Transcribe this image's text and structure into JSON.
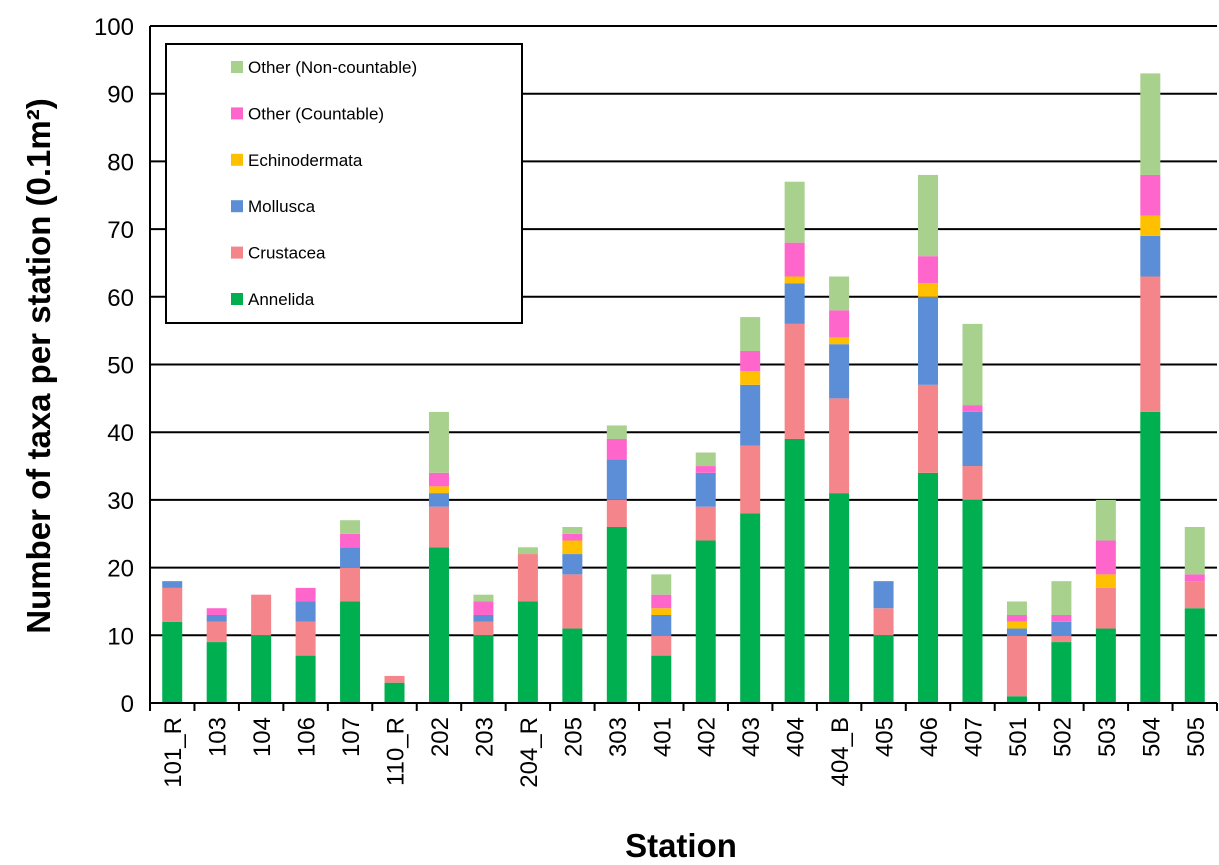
{
  "chart_data": {
    "type": "bar",
    "stacked": true,
    "title": "",
    "xlabel": "Station",
    "ylabel": "Number of taxa per station (0.1m²)",
    "ylim": [
      0,
      100
    ],
    "yticks": [
      0,
      10,
      20,
      30,
      40,
      50,
      60,
      70,
      80,
      90,
      100
    ],
    "grid": "horizontal",
    "legend_position": "top-left",
    "categories": [
      "101_R",
      "103",
      "104",
      "106",
      "107",
      "110_R",
      "202",
      "203",
      "204_R",
      "205",
      "303",
      "401",
      "402",
      "403",
      "404",
      "404_B",
      "405",
      "406",
      "407",
      "501",
      "502",
      "503",
      "504",
      "505"
    ],
    "series": [
      {
        "name": "Annelida",
        "color": "#00b050",
        "values": [
          12,
          9,
          10,
          7,
          15,
          3,
          23,
          10,
          15,
          11,
          26,
          7,
          24,
          28,
          39,
          31,
          10,
          34,
          30,
          1,
          9,
          11,
          43,
          14
        ]
      },
      {
        "name": "Crustacea",
        "color": "#f4858a",
        "values": [
          5,
          3,
          6,
          5,
          5,
          1,
          6,
          2,
          7,
          8,
          4,
          3,
          5,
          10,
          17,
          14,
          4,
          13,
          5,
          9,
          1,
          6,
          20,
          4
        ]
      },
      {
        "name": "Mollusca",
        "color": "#5b8ed6",
        "values": [
          1,
          1,
          0,
          3,
          3,
          0,
          2,
          1,
          0,
          3,
          6,
          3,
          5,
          9,
          6,
          8,
          4,
          13,
          8,
          1,
          2,
          0,
          6,
          0
        ]
      },
      {
        "name": "Echinodermata",
        "color": "#ffc000",
        "values": [
          0,
          0,
          0,
          0,
          0,
          0,
          1,
          0,
          0,
          2,
          0,
          1,
          0,
          2,
          1,
          1,
          0,
          2,
          0,
          1,
          0,
          2,
          3,
          0
        ]
      },
      {
        "name": "Other (Countable)",
        "color": "#ff66cc",
        "values": [
          0,
          1,
          0,
          2,
          2,
          0,
          2,
          2,
          0,
          1,
          3,
          2,
          1,
          3,
          5,
          4,
          0,
          4,
          1,
          1,
          1,
          5,
          6,
          1
        ]
      },
      {
        "name": "Other (Non-countable)",
        "color": "#a9d18e",
        "values": [
          0,
          0,
          0,
          0,
          2,
          0,
          9,
          1,
          1,
          1,
          2,
          3,
          2,
          5,
          9,
          5,
          0,
          12,
          12,
          2,
          5,
          6,
          15,
          7
        ]
      }
    ]
  }
}
